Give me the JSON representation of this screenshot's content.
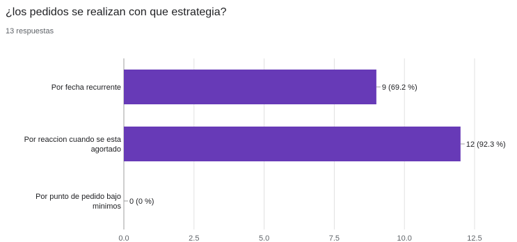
{
  "question": {
    "title": "¿los pedidos se realizan con que estrategia?",
    "responses": "13 respuestas"
  },
  "colors": {
    "bar": "#673ab7",
    "grid": "#e0e0e0",
    "axis": "#9e9e9e",
    "text": "#202124",
    "muted": "#5f6368"
  },
  "chart_data": {
    "type": "bar",
    "orientation": "horizontal",
    "categories": [
      [
        "Por fecha recurrente"
      ],
      [
        "Por reaccion cuando se esta",
        "agortado"
      ],
      [
        "Por punto de pedido bajo",
        "minimos"
      ]
    ],
    "values": [
      9,
      12,
      0
    ],
    "data_labels": [
      "9 (69.2 %)",
      "12 (92.3 %)",
      "0 (0 %)"
    ],
    "xlim": [
      0,
      12.5
    ],
    "x_ticks": [
      "0.0",
      "2.5",
      "5.0",
      "7.5",
      "10.0",
      "12.5"
    ],
    "grid": true,
    "legend": "none"
  }
}
